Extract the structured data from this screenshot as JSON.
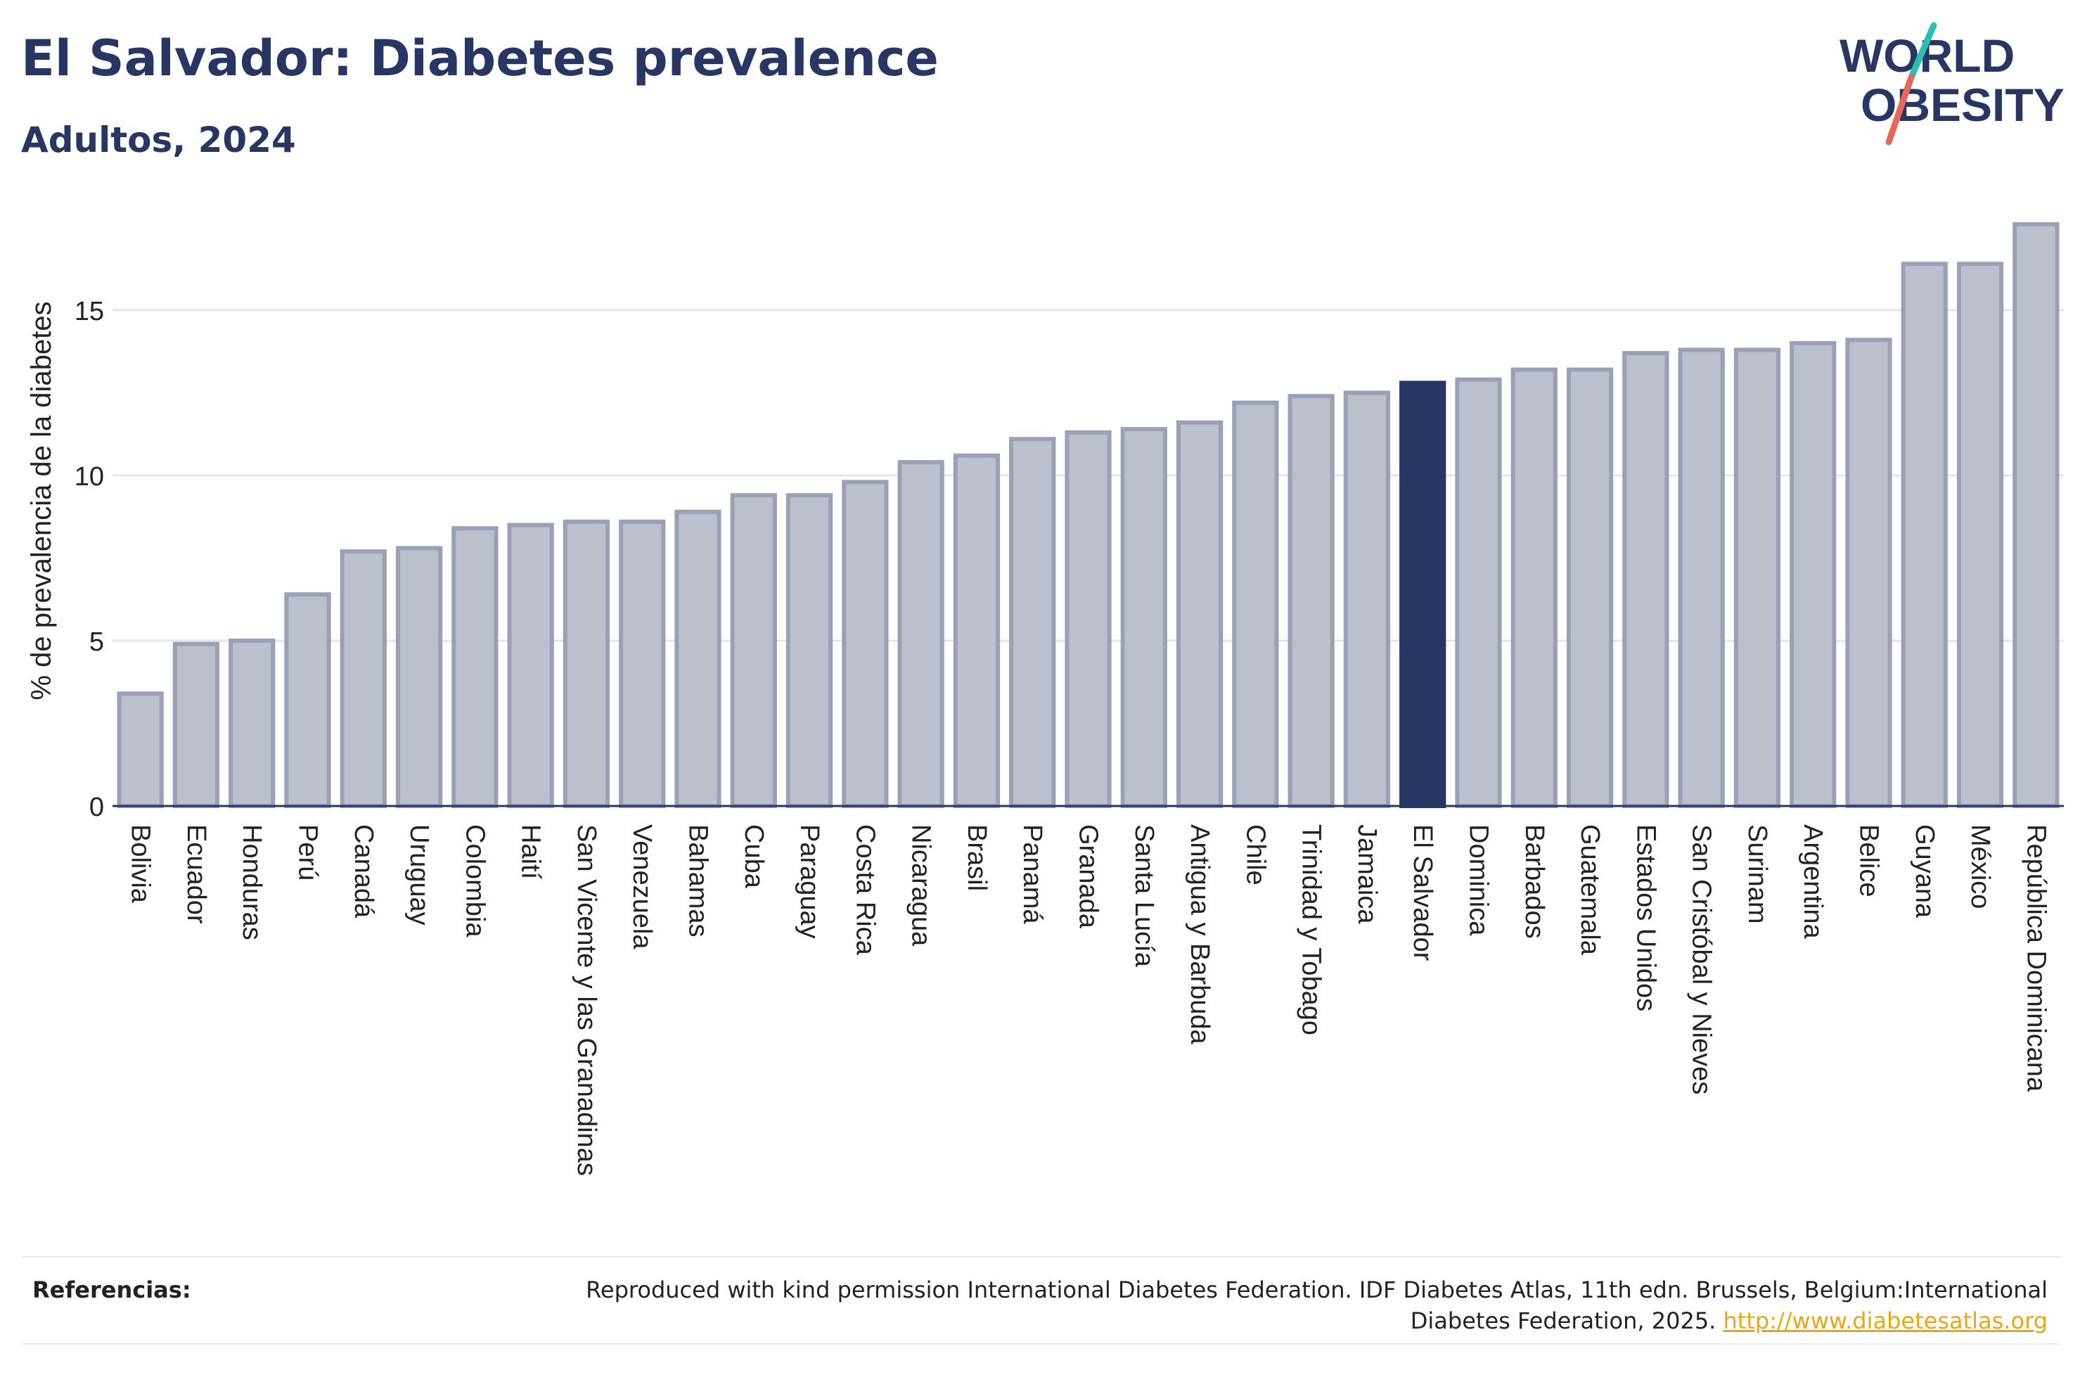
{
  "header": {
    "title": "El Salvador: Diabetes prevalence",
    "subtitle": "Adultos, 2024"
  },
  "logo": {
    "line1": "WORLD",
    "line2": "OBESITY",
    "colors": {
      "text": "#283663",
      "slash_top": "#2bbfb0",
      "slash_bottom": "#e8685a"
    }
  },
  "colors": {
    "bar_default_fill": "#bcc0cd",
    "bar_default_stroke": "#9aa0b5",
    "bar_highlight": "#283663",
    "axis": "#283663",
    "grid": "#e6e6e6",
    "text": "#222222"
  },
  "chart_data": {
    "type": "bar",
    "title": "El Salvador: Diabetes prevalence",
    "subtitle": "Adultos, 2024",
    "xlabel": "",
    "ylabel": "% de prevalencia de la diabetes",
    "ylim": [
      0,
      18
    ],
    "yticks": [
      0,
      5,
      10,
      15
    ],
    "grid": true,
    "highlight": "El Salvador",
    "categories": [
      "Bolivia",
      "Ecuador",
      "Honduras",
      "Perú",
      "Canadá",
      "Uruguay",
      "Colombia",
      "Haití",
      "San Vicente y las Granadinas",
      "Venezuela",
      "Bahamas",
      "Cuba",
      "Paraguay",
      "Costa Rica",
      "Nicaragua",
      "Brasil",
      "Panamá",
      "Granada",
      "Santa Lucía",
      "Antigua y Barbuda",
      "Chile",
      "Trinidad y Tobago",
      "Jamaica",
      "El Salvador",
      "Dominica",
      "Barbados",
      "Guatemala",
      "Estados Unidos",
      "San Cristóbal y Nieves",
      "Surinam",
      "Argentina",
      "Belice",
      "Guyana",
      "México",
      "República Dominicana"
    ],
    "values": [
      3.4,
      4.9,
      5.0,
      6.4,
      7.7,
      7.8,
      8.4,
      8.5,
      8.6,
      8.6,
      8.9,
      9.4,
      9.4,
      9.8,
      10.4,
      10.6,
      11.1,
      11.3,
      11.4,
      11.6,
      12.2,
      12.4,
      12.5,
      12.8,
      12.9,
      13.2,
      13.2,
      13.7,
      13.8,
      13.8,
      14.0,
      14.1,
      16.4,
      16.4,
      17.6
    ]
  },
  "footer": {
    "label": "Referencias:",
    "text": "Reproduced with kind permission International Diabetes Federation. IDF Diabetes Atlas, 11th edn. Brussels, Belgium:International Diabetes Federation, 2025. ",
    "link": "http://www.diabetesatlas.org"
  }
}
